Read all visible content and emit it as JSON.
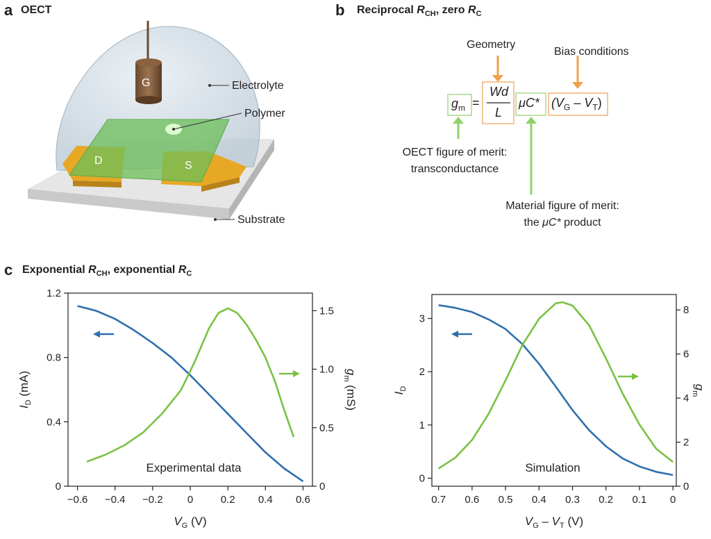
{
  "panel_a": {
    "letter": "a",
    "title": "OECT",
    "labels": {
      "gate": "G",
      "drain": "D",
      "source": "S",
      "electrolyte": "Electrolyte",
      "polymer": "Polymer",
      "substrate": "Substrate"
    }
  },
  "panel_b": {
    "letter": "b",
    "title_pre": "Reciprocal ",
    "title_r1": "R",
    "title_r1_sub": "CH",
    "title_mid": ", zero ",
    "title_r2": "R",
    "title_r2_sub": "C",
    "geometry": "Geometry",
    "bias": "Bias conditions",
    "gm": "g",
    "gm_sub": "m",
    "equals": "=",
    "frac_num": "Wd",
    "frac_den": "L",
    "muc": "μC*",
    "vg_term_pre": "(V",
    "vg_term_sub1": "G",
    "vg_term_mid": " – V",
    "vg_term_sub2": "T",
    "vg_term_post": ")",
    "oect_merit_1": "OECT figure of merit:",
    "oect_merit_2": "transconductance",
    "mat_merit_1": "Material figure of merit:",
    "mat_merit_2_pre": "the ",
    "mat_merit_2_italic": "μC*",
    "mat_merit_2_post": " product",
    "colors": {
      "orange": "#f0a04b",
      "green": "#8fd16a",
      "box_orange": "#f3b274",
      "box_green": "#a8d98c"
    }
  },
  "panel_c": {
    "letter": "c",
    "title_pre": "Exponential ",
    "title_r1": "R",
    "title_r1_sub": "CH",
    "title_mid": ", exponential ",
    "title_r2": "R",
    "title_r2_sub": "C"
  },
  "chart_data": [
    {
      "type": "line",
      "annotation": "Experimental data",
      "xlabel": "V_G (V)",
      "ylabel_left": "I_D (mA)",
      "ylabel_right": "g_m (mS)",
      "xlim": [
        -0.65,
        0.65
      ],
      "ylim_left": [
        0,
        1.2
      ],
      "ylim_right": [
        0,
        1.65
      ],
      "x_ticks": [
        "-0.6",
        "-0.4",
        "-0.2",
        "0",
        "0.2",
        "0.4",
        "0.6"
      ],
      "y_left_ticks": [
        "0",
        "0.4",
        "0.8",
        "1.2"
      ],
      "y_right_ticks": [
        "0",
        "0.5",
        "1.0",
        "1.5"
      ],
      "colors": {
        "blue": "#2f6fad",
        "green": "#7ac143"
      },
      "series": [
        {
          "axis": "left",
          "x": [
            -0.6,
            -0.5,
            -0.4,
            -0.3,
            -0.2,
            -0.1,
            0.0,
            0.1,
            0.2,
            0.3,
            0.4,
            0.5,
            0.6
          ],
          "values": [
            1.12,
            1.09,
            1.04,
            0.97,
            0.89,
            0.8,
            0.69,
            0.57,
            0.45,
            0.33,
            0.21,
            0.11,
            0.03
          ]
        },
        {
          "axis": "right",
          "x": [
            -0.55,
            -0.45,
            -0.35,
            -0.25,
            -0.15,
            -0.05,
            0.02,
            0.1,
            0.15,
            0.2,
            0.25,
            0.3,
            0.35,
            0.4,
            0.45,
            0.5,
            0.55
          ],
          "values": [
            0.21,
            0.27,
            0.35,
            0.46,
            0.62,
            0.82,
            1.05,
            1.35,
            1.48,
            1.52,
            1.48,
            1.38,
            1.25,
            1.1,
            0.9,
            0.65,
            0.42
          ]
        }
      ]
    },
    {
      "type": "line",
      "annotation": "Simulation",
      "xlabel": "V_G – V_T (V)",
      "ylabel_left": "I_D",
      "ylabel_right": "g_m",
      "xlim": [
        0.72,
        -0.01
      ],
      "ylim_left": [
        -0.15,
        3.45
      ],
      "ylim_right": [
        0,
        8.7
      ],
      "x_ticks": [
        "0.7",
        "0.6",
        "0.5",
        "0.4",
        "0.3",
        "0.2",
        "0.1",
        "0"
      ],
      "y_left_ticks": [
        "0",
        "1",
        "2",
        "3"
      ],
      "y_right_ticks": [
        "0",
        "2",
        "4",
        "6",
        "8"
      ],
      "colors": {
        "blue": "#2f6fad",
        "green": "#7ac143"
      },
      "series": [
        {
          "axis": "left",
          "x": [
            0.7,
            0.65,
            0.6,
            0.55,
            0.5,
            0.45,
            0.4,
            0.35,
            0.3,
            0.25,
            0.2,
            0.15,
            0.1,
            0.05,
            0.0
          ],
          "values": [
            3.25,
            3.2,
            3.12,
            2.98,
            2.8,
            2.52,
            2.15,
            1.72,
            1.28,
            0.9,
            0.6,
            0.37,
            0.22,
            0.12,
            0.06
          ]
        },
        {
          "axis": "right",
          "x": [
            0.7,
            0.65,
            0.6,
            0.55,
            0.5,
            0.45,
            0.4,
            0.35,
            0.33,
            0.3,
            0.25,
            0.2,
            0.15,
            0.1,
            0.05,
            0.0
          ],
          "values": [
            0.8,
            1.3,
            2.1,
            3.3,
            4.8,
            6.4,
            7.6,
            8.3,
            8.35,
            8.2,
            7.3,
            5.8,
            4.2,
            2.8,
            1.7,
            1.1
          ]
        }
      ]
    }
  ]
}
